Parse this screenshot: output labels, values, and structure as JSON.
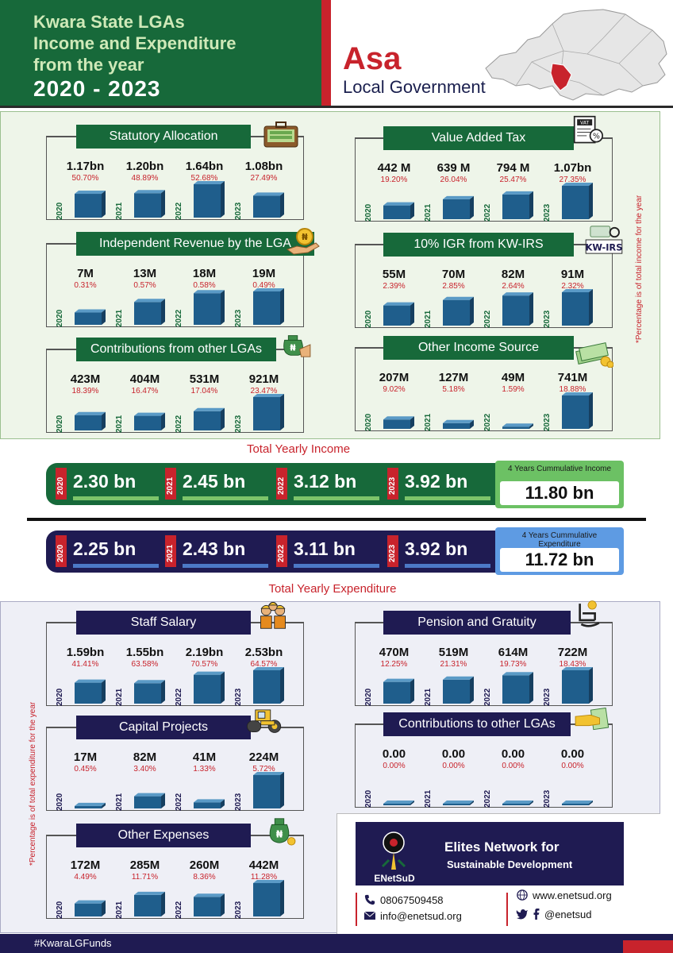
{
  "header": {
    "title_lines": [
      "Kwara State LGAs",
      "Income and Expenditure",
      "from the year"
    ],
    "years": "2020 - 2023",
    "lga": "Asa",
    "lga_sub": "Local Government"
  },
  "years": [
    "2020",
    "2021",
    "2022",
    "2023"
  ],
  "income": {
    "side_note": "*Percentage is of total income for the year",
    "panels": [
      {
        "title": "Statutory Allocation",
        "icon": "money-case-icon",
        "values": [
          "1.17bn",
          "1.20bn",
          "1.64bn",
          "1.08bn"
        ],
        "percents": [
          "50.70%",
          "48.89%",
          "52.68%",
          "27.49%"
        ],
        "amounts": [
          1.17,
          1.2,
          1.64,
          1.08
        ]
      },
      {
        "title": "Value Added Tax",
        "icon": "vat-document-icon",
        "values": [
          "442 M",
          "639 M",
          "794 M",
          "1.07bn"
        ],
        "percents": [
          "19.20%",
          "26.04%",
          "25.47%",
          "27.35%"
        ],
        "amounts": [
          0.442,
          0.639,
          0.794,
          1.07
        ]
      },
      {
        "title": "Independent Revenue by the LGA",
        "icon": "hand-coin-icon",
        "values": [
          "7M",
          "13M",
          "18M",
          "19M"
        ],
        "percents": [
          "0.31%",
          "0.57%",
          "0.58%",
          "0.49%"
        ],
        "amounts": [
          7,
          13,
          18,
          19
        ]
      },
      {
        "title": "10% IGR from KW-IRS",
        "icon": "kw-irs-logo-icon",
        "icon_text": "KW-IRS",
        "values": [
          "55M",
          "70M",
          "82M",
          "91M"
        ],
        "percents": [
          "2.39%",
          "2.85%",
          "2.64%",
          "2.32%"
        ],
        "amounts": [
          55,
          70,
          82,
          91
        ]
      },
      {
        "title": "Contributions from other LGAs",
        "icon": "money-bag-hand-icon",
        "values": [
          "423M",
          "404M",
          "531M",
          "921M"
        ],
        "percents": [
          "18.39%",
          "16.47%",
          "17.04%",
          "23.47%"
        ],
        "amounts": [
          423,
          404,
          531,
          921
        ]
      },
      {
        "title": "Other Income Source",
        "icon": "cash-stack-icon",
        "values": [
          "207M",
          "127M",
          "49M",
          "741M"
        ],
        "percents": [
          "9.02%",
          "5.18%",
          "1.59%",
          "18.88%"
        ],
        "amounts": [
          207,
          127,
          49,
          741
        ]
      }
    ],
    "total_label": "Total Yearly Income",
    "totals": [
      "2.30 bn",
      "2.45 bn",
      "3.12 bn",
      "3.92 bn"
    ],
    "cumulative_label": "4 Years Cummulative Income",
    "cumulative_value": "11.80 bn"
  },
  "expenditure": {
    "side_note": "*Percentage is of total expenditure for the year",
    "totals": [
      "2.25 bn",
      "2.43 bn",
      "3.11 bn",
      "3.92 bn"
    ],
    "cumulative_label": "4 Years Cummulative Expenditure",
    "cumulative_value": "11.72 bn",
    "total_label": "Total Yearly Expenditure",
    "panels": [
      {
        "title": "Staff Salary",
        "icon": "staff-workers-icon",
        "values": [
          "1.59bn",
          "1.55bn",
          "2.19bn",
          "2.53bn"
        ],
        "percents": [
          "41.41%",
          "63.58%",
          "70.57%",
          "64.57%"
        ],
        "amounts": [
          1.59,
          1.55,
          2.19,
          2.53
        ]
      },
      {
        "title": "Pension and Gratuity",
        "icon": "rocking-chair-icon",
        "values": [
          "470M",
          "519M",
          "614M",
          "722M"
        ],
        "percents": [
          "12.25%",
          "21.31%",
          "19.73%",
          "18.43%"
        ],
        "amounts": [
          470,
          519,
          614,
          722
        ]
      },
      {
        "title": "Capital Projects",
        "icon": "road-roller-icon",
        "values": [
          "17M",
          "82M",
          "41M",
          "224M"
        ],
        "percents": [
          "0.45%",
          "3.40%",
          "1.33%",
          "5.72%"
        ],
        "amounts": [
          17,
          82,
          41,
          224
        ]
      },
      {
        "title": "Contributions to other LGAs",
        "icon": "hand-giving-cash-icon",
        "values": [
          "0.00",
          "0.00",
          "0.00",
          "0.00"
        ],
        "percents": [
          "0.00%",
          "0.00%",
          "0.00%",
          "0.00%"
        ],
        "amounts": [
          0,
          0,
          0,
          0
        ]
      },
      {
        "title": "Other Expenses",
        "icon": "naira-money-bag-icon",
        "values": [
          "172M",
          "285M",
          "260M",
          "442M"
        ],
        "percents": [
          "4.49%",
          "11.71%",
          "8.36%",
          "11.28%"
        ],
        "amounts": [
          172,
          285,
          260,
          442
        ]
      }
    ]
  },
  "brand": {
    "logo_text": "ENetSuD",
    "name_line1": "Elites Network for",
    "name_line2": "Sustainable Development",
    "phone": "08067509458",
    "email": "info@enetsud.org",
    "website": "www.enetsud.org",
    "social": "@enetsud"
  },
  "footer": {
    "hashtag": "#KwaraLGFunds"
  },
  "colors": {
    "green": "#17693a",
    "navy": "#1f1b52",
    "red": "#c8232c",
    "light_green": "#6cc164",
    "light_blue": "#5e9be3",
    "bar_blue": "#1f5e8c"
  }
}
